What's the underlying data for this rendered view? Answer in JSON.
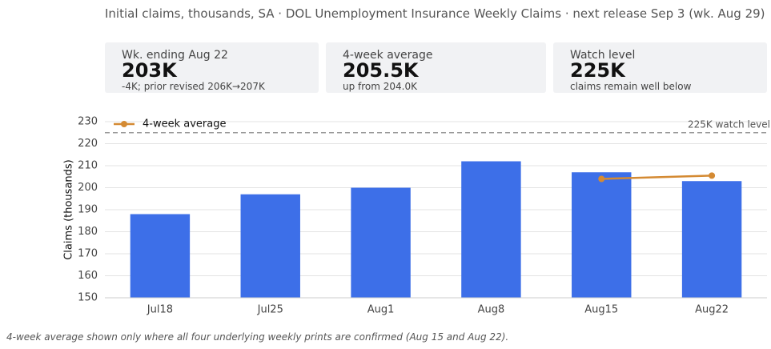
{
  "header": {
    "title": "Initial claims, thousands, SA · DOL Unemployment Insurance Weekly Claims · next release Sep 3 (wk. Aug 29)"
  },
  "cards": [
    {
      "label": "Wk. ending Aug 22",
      "value": "203K",
      "note": "-4K; prior revised 206K→207K"
    },
    {
      "label": "4-week average",
      "value": "205.5K",
      "note": "up from 204.0K"
    },
    {
      "label": "Watch level",
      "value": "225K",
      "note": "claims remain well below"
    }
  ],
  "chart_data": {
    "type": "bar",
    "y_label": "Claims (thousands)",
    "categories": [
      "Jul18",
      "Jul25",
      "Aug1",
      "Aug8",
      "Aug15",
      "Aug22"
    ],
    "values": [
      188,
      197,
      200,
      212,
      207,
      203
    ],
    "color": "#3d6fe8",
    "series": [
      {
        "name": "4-week average",
        "color": "#d48a33",
        "values": [
          null,
          null,
          null,
          null,
          204,
          205.5
        ]
      }
    ],
    "reference_lines": [
      {
        "value": 225,
        "label": "225K watch level"
      }
    ],
    "ylim": [
      150,
      230
    ],
    "yticks": [
      150,
      160,
      170,
      180,
      190,
      200,
      210,
      220,
      230
    ],
    "grid": true,
    "legend": "upper left"
  },
  "footnote": "4-week average shown only where all four underlying weekly prints are confirmed (Aug 15 and Aug 22)."
}
